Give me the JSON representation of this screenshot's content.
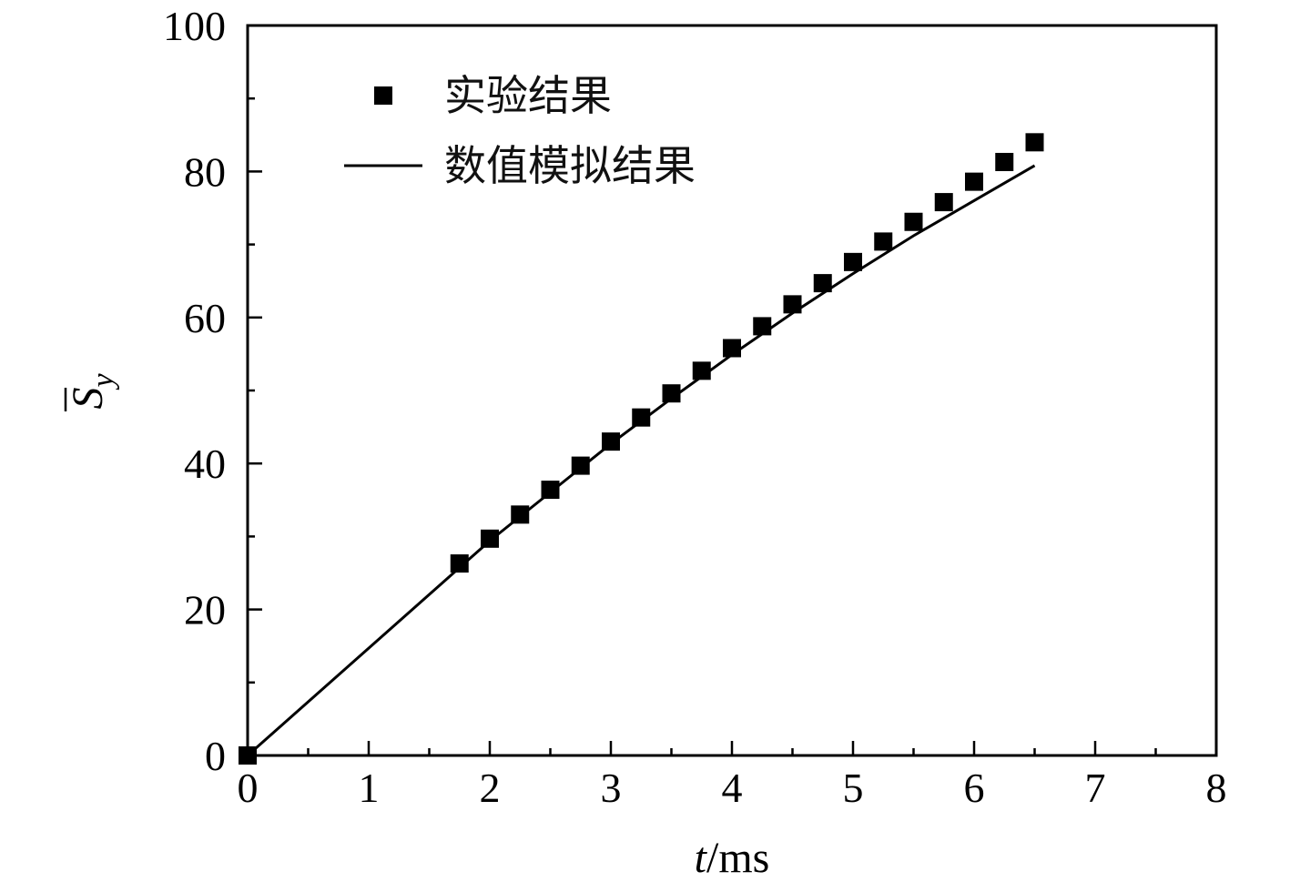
{
  "chart_data": {
    "type": "line",
    "xlabel": {
      "var": "t",
      "unit": "/ms"
    },
    "ylabel": {
      "var": "S",
      "sub": "y"
    },
    "xlim": [
      0,
      8
    ],
    "ylim": [
      0,
      100
    ],
    "x_ticks": [
      0,
      1,
      2,
      3,
      4,
      5,
      6,
      7,
      8
    ],
    "y_ticks": [
      0,
      20,
      40,
      60,
      80,
      100
    ],
    "x_tick_labels": [
      "0",
      "1",
      "2",
      "3",
      "4",
      "5",
      "6",
      "7",
      "8"
    ],
    "y_tick_labels": [
      "0",
      "20",
      "40",
      "60",
      "80",
      "100"
    ],
    "x_minor_step": 0.5,
    "y_minor_step": 10,
    "grid": false,
    "legend_position": "top-left",
    "series": [
      {
        "name": "实验结果",
        "kind": "scatter",
        "marker": "square",
        "color": "#000000",
        "x": [
          0,
          1.75,
          2.0,
          2.25,
          2.5,
          2.75,
          3.0,
          3.25,
          3.5,
          3.75,
          4.0,
          4.25,
          4.5,
          4.75,
          5.0,
          5.25,
          5.5,
          5.75,
          6.0,
          6.25,
          6.5
        ],
        "y": [
          0,
          26.3,
          29.7,
          33.0,
          36.4,
          39.7,
          43.0,
          46.3,
          49.6,
          52.7,
          55.8,
          58.8,
          61.8,
          64.7,
          67.6,
          70.4,
          73.1,
          75.8,
          78.6,
          81.3,
          84.0
        ]
      },
      {
        "name": "数值模拟结果",
        "kind": "line",
        "color": "#000000",
        "x": [
          0,
          1.0,
          2.0,
          3.0,
          3.5,
          4.0,
          4.5,
          5.0,
          5.5,
          6.0,
          6.5
        ],
        "y": [
          0,
          14.7,
          29.4,
          42.7,
          48.9,
          54.9,
          60.6,
          66.0,
          71.2,
          76.0,
          80.8
        ]
      }
    ]
  }
}
